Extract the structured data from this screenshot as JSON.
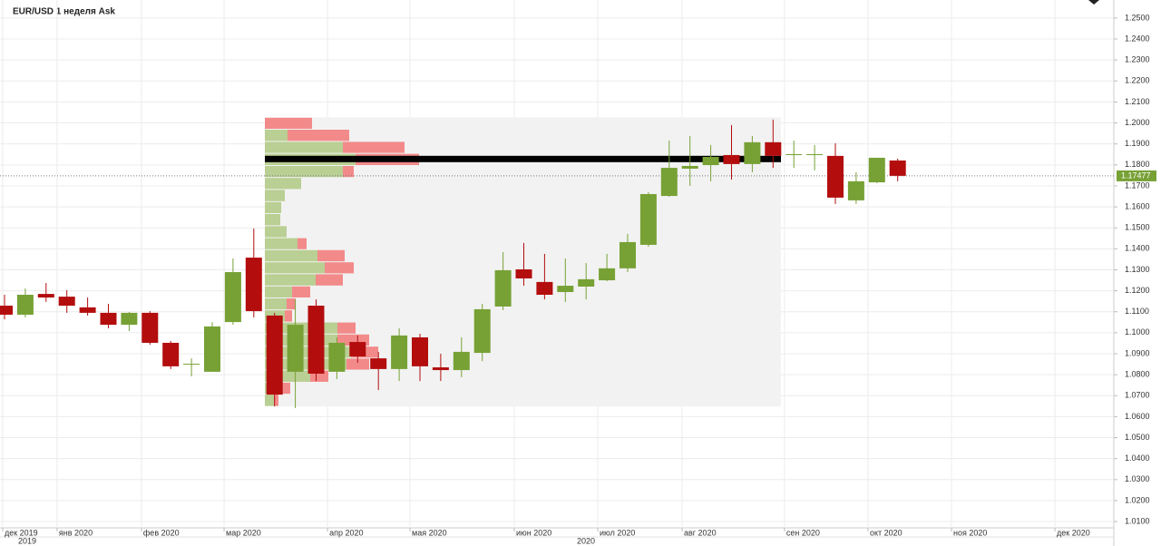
{
  "chart_data": {
    "type": "candlestick",
    "title": "EUR/USD  1 неделя Ask",
    "up_color": "#77a135",
    "down_color": "#b30d0d",
    "open": [
      1.1129,
      1.1086,
      1.1185,
      1.1172,
      1.1121,
      1.1095,
      1.1038,
      1.1095,
      1.0952,
      1.0848,
      1.0814,
      1.1051,
      1.1358,
      1.1082,
      1.0814,
      1.1129,
      1.0814,
      1.0956,
      1.0878,
      1.0827,
      1.0978,
      1.0835,
      1.0822,
      1.0904,
      1.1125,
      1.1302,
      1.1242,
      1.1194,
      1.122,
      1.125,
      1.1307,
      1.1419,
      1.1652,
      1.1782,
      1.1799,
      1.1847,
      1.1804,
      1.1908,
      1.1851,
      1.1847,
      1.1843,
      1.1631,
      1.1717,
      1.1821
    ],
    "high": [
      1.1181,
      1.1211,
      1.1237,
      1.1203,
      1.1168,
      1.1138,
      1.1099,
      1.1103,
      1.0961,
      1.0878,
      1.1051,
      1.1354,
      1.1497,
      1.1095,
      1.1159,
      1.1159,
      1.0978,
      1.0987,
      1.0909,
      1.1021,
      1.0995,
      1.09,
      1.0978,
      1.1138,
      1.1384,
      1.1428,
      1.1376,
      1.1354,
      1.1332,
      1.1376,
      1.1471,
      1.167,
      1.1916,
      1.1938,
      1.1895,
      1.199,
      1.1938,
      1.2016,
      1.1916,
      1.1895,
      1.1903,
      1.1765,
      1.1834,
      1.183
    ],
    "low": [
      1.1064,
      1.1073,
      1.1147,
      1.1095,
      1.1082,
      1.1021,
      1.1008,
      1.0943,
      1.0827,
      1.0792,
      1.0814,
      1.1038,
      1.1073,
      1.0649,
      1.0641,
      1.077,
      1.0779,
      1.0857,
      1.0727,
      1.077,
      1.077,
      1.077,
      1.0788,
      1.0865,
      1.1108,
      1.1224,
      1.1159,
      1.1147,
      1.1159,
      1.1246,
      1.1289,
      1.141,
      1.1648,
      1.17,
      1.1722,
      1.173,
      1.1765,
      1.1786,
      1.1786,
      1.1774,
      1.1614,
      1.1614,
      1.1713,
      1.1722
    ],
    "close": [
      1.1086,
      1.1181,
      1.1168,
      1.1129,
      1.1095,
      1.1038,
      1.1095,
      1.0952,
      1.084,
      1.0852,
      1.103,
      1.1289,
      1.1103,
      1.0705,
      1.1038,
      1.0805,
      1.0952,
      1.0887,
      1.0827,
      1.0987,
      1.084,
      1.0822,
      1.0909,
      1.1112,
      1.1298,
      1.1259,
      1.1181,
      1.1224,
      1.1255,
      1.1307,
      1.1432,
      1.1661,
      1.1786,
      1.1795,
      1.1838,
      1.1804,
      1.1908,
      1.1843,
      1.1851,
      1.1851,
      1.1644,
      1.1722,
      1.1834,
      1.1748
    ],
    "ylim": [
      1.007,
      1.2586
    ],
    "yticks": [
      {
        "value": 1.01,
        "label": "1.0100"
      },
      {
        "value": 1.02,
        "label": "1.0200"
      },
      {
        "value": 1.03,
        "label": "1.0300"
      },
      {
        "value": 1.04,
        "label": "1.0400"
      },
      {
        "value": 1.05,
        "label": "1.0500"
      },
      {
        "value": 1.06,
        "label": "1.0600"
      },
      {
        "value": 1.07,
        "label": "1.0700"
      },
      {
        "value": 1.08,
        "label": "1.0800"
      },
      {
        "value": 1.09,
        "label": "1.0900"
      },
      {
        "value": 1.1,
        "label": "1.1000"
      },
      {
        "value": 1.11,
        "label": "1.1100"
      },
      {
        "value": 1.12,
        "label": "1.1200"
      },
      {
        "value": 1.13,
        "label": "1.1300"
      },
      {
        "value": 1.14,
        "label": "1.1400"
      },
      {
        "value": 1.15,
        "label": "1.1500"
      },
      {
        "value": 1.16,
        "label": "1.1600"
      },
      {
        "value": 1.17,
        "label": "1.1700"
      },
      {
        "value": 1.18,
        "label": "1.1800"
      },
      {
        "value": 1.19,
        "label": "1.1900"
      },
      {
        "value": 1.2,
        "label": "1.2000"
      },
      {
        "value": 1.21,
        "label": "1.2100"
      },
      {
        "value": 1.22,
        "label": "1.2200"
      },
      {
        "value": 1.23,
        "label": "1.2300"
      },
      {
        "value": 1.24,
        "label": "1.2400"
      },
      {
        "value": 1.25,
        "label": "1.2500"
      }
    ],
    "xticks": [
      {
        "value": -0.09,
        "label": "дек 2019"
      },
      {
        "value": 2.53,
        "label": "янв 2020"
      },
      {
        "value": 6.59,
        "label": "фев 2020"
      },
      {
        "value": 10.57,
        "label": "мар 2020"
      },
      {
        "value": 15.55,
        "label": "апр 2020"
      },
      {
        "value": 19.52,
        "label": "мая 2020"
      },
      {
        "value": 24.54,
        "label": "июн 2020"
      },
      {
        "value": 28.56,
        "label": "июл 2020"
      },
      {
        "value": 32.62,
        "label": "авг 2020"
      },
      {
        "value": 37.55,
        "label": "сен 2020"
      },
      {
        "value": 41.57,
        "label": "окт 2020"
      },
      {
        "value": 45.59,
        "label": "ноя 2020"
      },
      {
        "value": 50.57,
        "label": "дек 2020"
      }
    ],
    "years": [
      "2019",
      "2020"
    ],
    "last_price": 1.17477,
    "grid": true,
    "volume_profile": {
      "bins": [
        1.2027,
        1.197,
        1.1912,
        1.1855,
        1.1797,
        1.174,
        1.1683,
        1.1625,
        1.1568,
        1.151,
        1.1453,
        1.1396,
        1.1338,
        1.1281,
        1.1223,
        1.1166,
        1.1109,
        1.1051,
        1.0994,
        1.0936,
        1.0879,
        1.0822,
        1.0764,
        1.0707,
        1.0649
      ],
      "buy": [
        0,
        25,
        86,
        100,
        86,
        40,
        22,
        18,
        17,
        24,
        36,
        58,
        66,
        56,
        30,
        24,
        22,
        80,
        80,
        95,
        90,
        50,
        18,
        10
      ],
      "sell": [
        52,
        68,
        68,
        70,
        12,
        0,
        0,
        0,
        0,
        0,
        10,
        30,
        32,
        30,
        20,
        10,
        8,
        20,
        35,
        30,
        25,
        20,
        10,
        5
      ],
      "buy_color": "#b9cf93",
      "sell_color": "#f28a8a"
    }
  }
}
